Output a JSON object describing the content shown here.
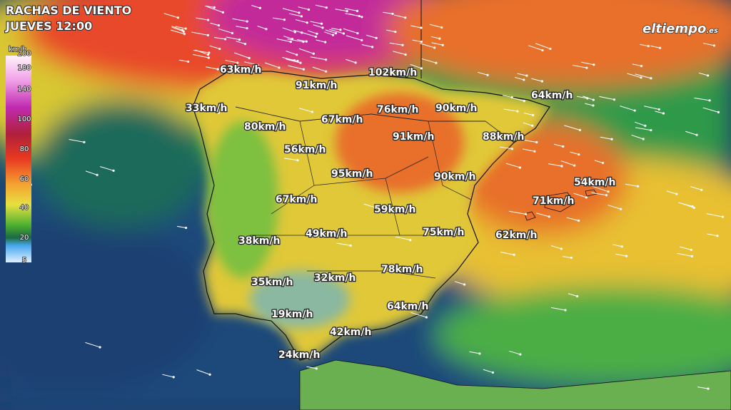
{
  "header": {
    "title": "RACHAS DE VIENTO",
    "subtitle": "JUEVES 12:00"
  },
  "logo": {
    "name": "eltiempo",
    "suffix": ".es"
  },
  "legend": {
    "unit": "km/h",
    "ticks": [
      200,
      180,
      140,
      100,
      80,
      60,
      40,
      20,
      5
    ]
  },
  "labels": [
    "63km/h",
    "102km/h",
    "91km/h",
    "33km/h",
    "76km/h",
    "90km/h",
    "64km/h",
    "67km/h",
    "80km/h",
    "91km/h",
    "88km/h",
    "56km/h",
    "95km/h",
    "90km/h",
    "54km/h",
    "67km/h",
    "71km/h",
    "59km/h",
    "38km/h",
    "49km/h",
    "75km/h",
    "62km/h",
    "78km/h",
    "35km/h",
    "32km/h",
    "64km/h",
    "19km/h",
    "42km/h",
    "24km/h"
  ]
}
